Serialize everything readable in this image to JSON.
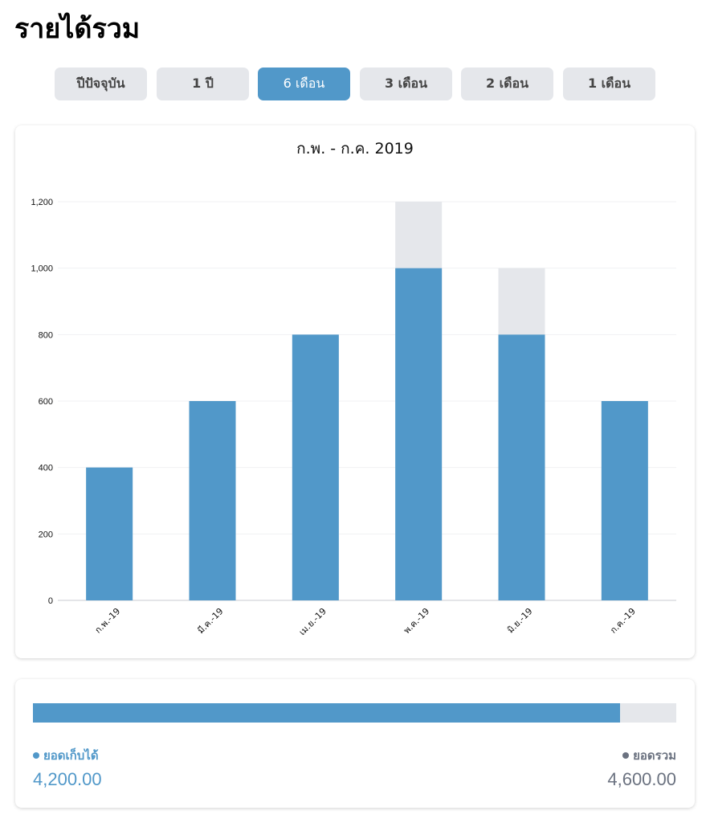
{
  "page": {
    "title": "รายได้รวม"
  },
  "tabs": [
    {
      "label": "ปีปัจจุบัน",
      "active": false
    },
    {
      "label": "1 ปี",
      "active": false
    },
    {
      "label": "6 เดือน",
      "active": true
    },
    {
      "label": "3 เดือน",
      "active": false
    },
    {
      "label": "2 เดือน",
      "active": false
    },
    {
      "label": "1 เดือน",
      "active": false
    }
  ],
  "chart_data": {
    "type": "bar",
    "title": "ก.พ. - ก.ค. 2019",
    "categories": [
      "ก.พ.-19",
      "มี.ค.-19",
      "เม.ย.-19",
      "พ.ค.-19",
      "มิ.ย.-19",
      "ก.ค.-19"
    ],
    "series": [
      {
        "values": [
          400,
          600,
          800,
          1000,
          800,
          600
        ],
        "color": "#5198c9"
      },
      {
        "values": [
          400,
          600,
          800,
          1200,
          1000,
          600
        ],
        "color": "#e5e7eb"
      }
    ],
    "ylim": [
      0,
      1200
    ],
    "yticks": [
      "0",
      "200",
      "400",
      "600",
      "800",
      "1,000",
      "1,200"
    ],
    "grid": true,
    "stacking": "overlay"
  },
  "summary": {
    "collected_label": "ยอดเก็บได้",
    "collected_value": "4,200.00",
    "total_label": "ยอดรวม",
    "total_value": "4,600.00",
    "progress_fraction": 0.913
  },
  "colors": {
    "accent": "#5198c9",
    "muted": "#e5e7eb",
    "gray_text": "#6b7280"
  }
}
